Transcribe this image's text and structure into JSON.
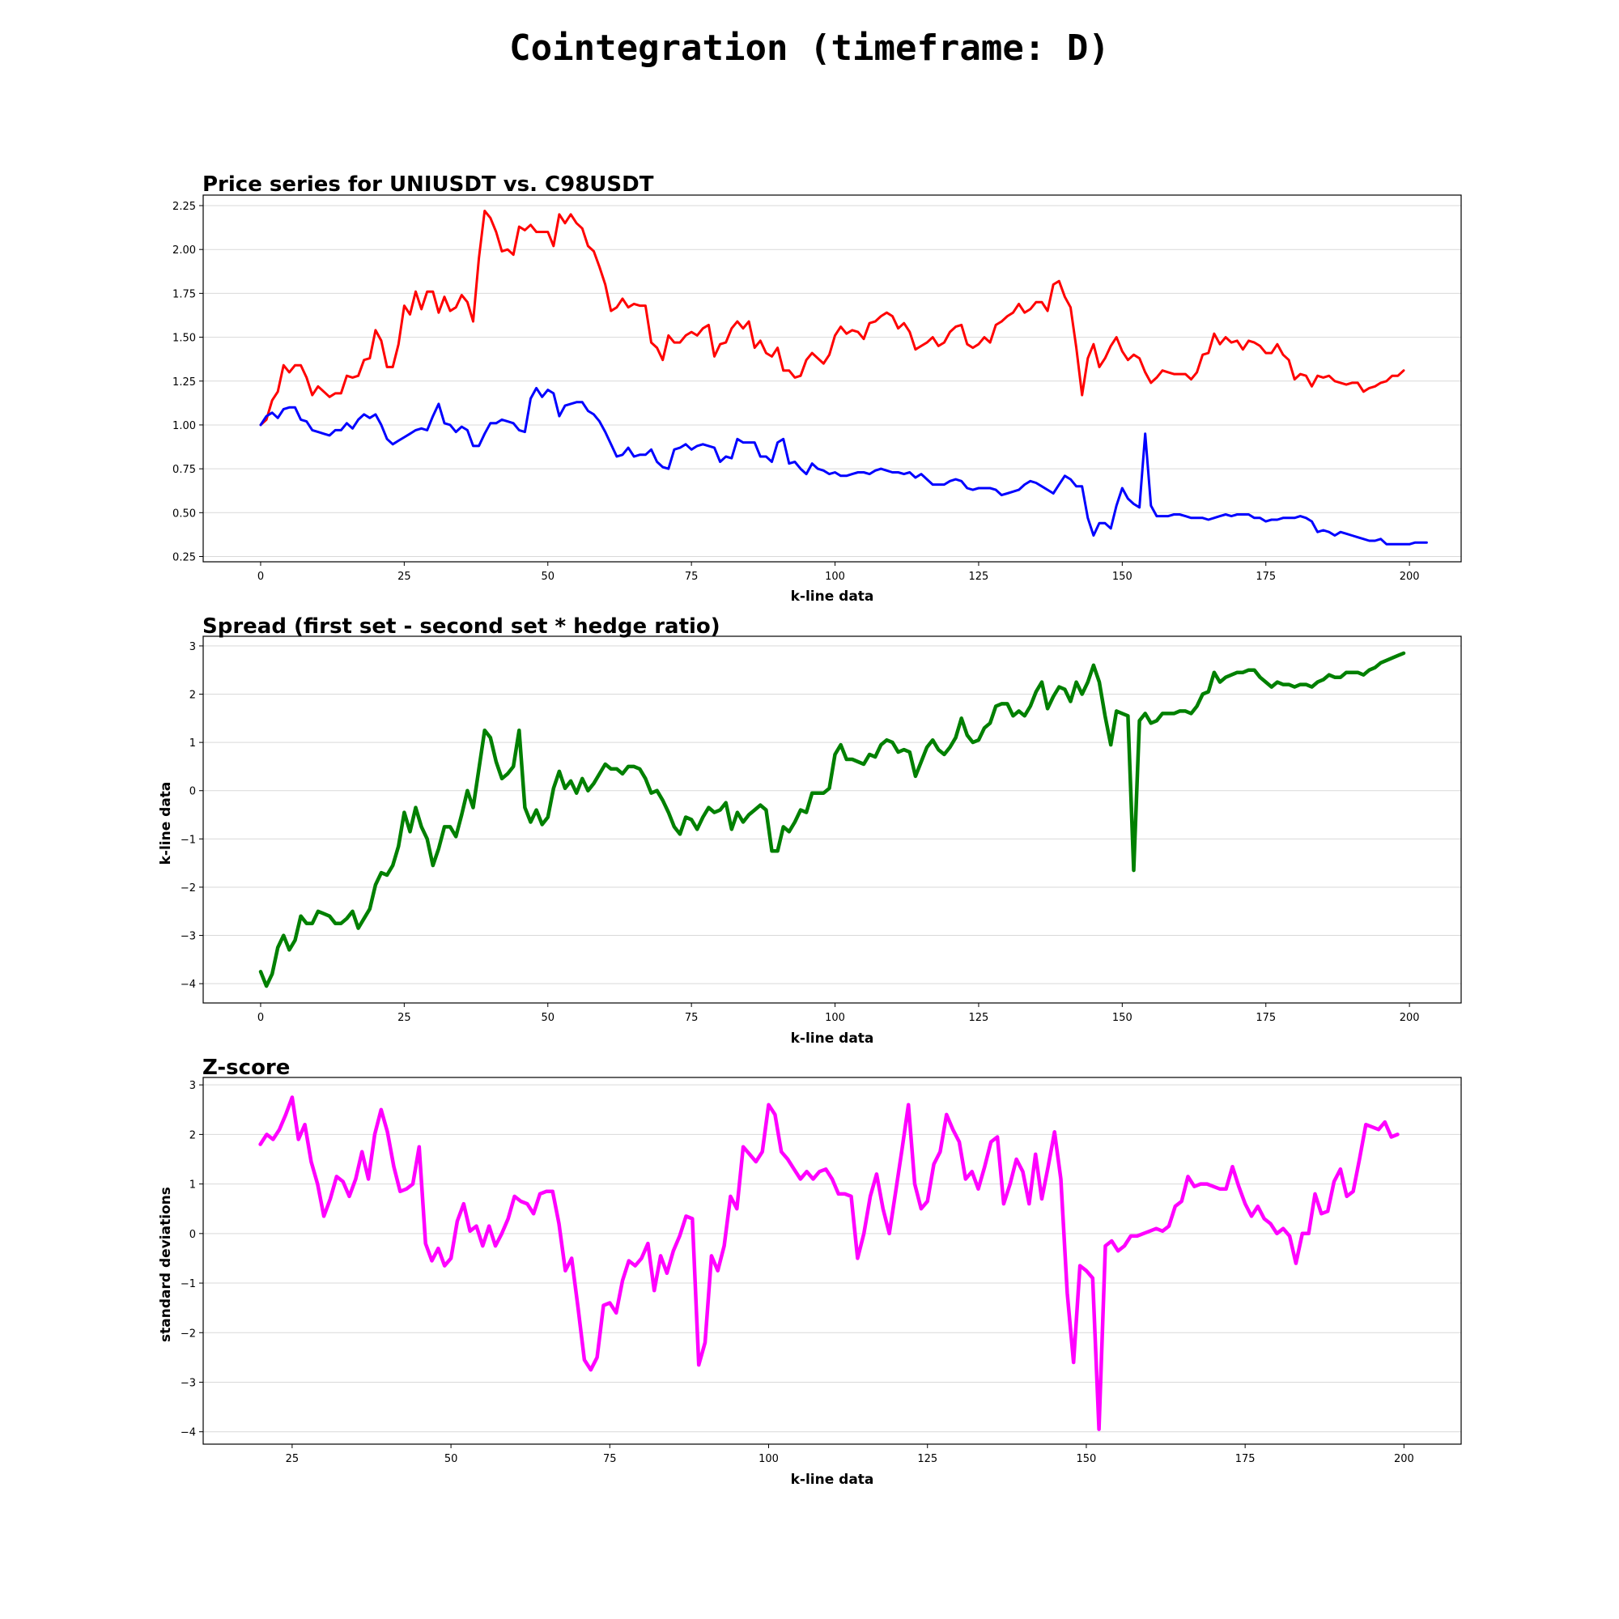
{
  "figure": {
    "suptitle": "Cointegration (timeframe: D)"
  },
  "chart_data": [
    {
      "type": "line",
      "title": "Price series for UNIUSDT vs. C98USDT",
      "xlabel": "k-line data",
      "ylabel": "",
      "xlim": [
        -10,
        209
      ],
      "ylim": [
        0.22,
        2.31
      ],
      "xticks": [
        0,
        25,
        50,
        75,
        100,
        125,
        150,
        175,
        200
      ],
      "yticks": [
        0.25,
        0.5,
        0.75,
        1.0,
        1.25,
        1.5,
        1.75,
        2.0,
        2.25
      ],
      "ytick_labels": [
        "0.25",
        "0.50",
        "0.75",
        "1.00",
        "1.25",
        "1.50",
        "1.75",
        "2.00",
        "2.25"
      ],
      "grid": "y",
      "x_start": 0,
      "series": [
        {
          "color": "#ff0000",
          "values": [
            1.0,
            1.03,
            1.14,
            1.19,
            1.34,
            1.3,
            1.34,
            1.34,
            1.27,
            1.17,
            1.22,
            1.19,
            1.16,
            1.18,
            1.18,
            1.28,
            1.27,
            1.28,
            1.37,
            1.38,
            1.54,
            1.48,
            1.33,
            1.33,
            1.46,
            1.68,
            1.63,
            1.76,
            1.66,
            1.76,
            1.76,
            1.64,
            1.73,
            1.65,
            1.67,
            1.74,
            1.7,
            1.59,
            1.95,
            2.22,
            2.18,
            2.1,
            1.99,
            2.0,
            1.97,
            2.13,
            2.11,
            2.14,
            2.1,
            2.1,
            2.1,
            2.02,
            2.2,
            2.15,
            2.2,
            2.15,
            2.12,
            2.02,
            1.99,
            1.9,
            1.8,
            1.65,
            1.67,
            1.72,
            1.67,
            1.69,
            1.68,
            1.68,
            1.47,
            1.44,
            1.37,
            1.51,
            1.47,
            1.47,
            1.51,
            1.53,
            1.51,
            1.55,
            1.57,
            1.39,
            1.46,
            1.47,
            1.55,
            1.59,
            1.55,
            1.59,
            1.44,
            1.48,
            1.41,
            1.39,
            1.44,
            1.31,
            1.31,
            1.27,
            1.28,
            1.37,
            1.41,
            1.38,
            1.35,
            1.4,
            1.51,
            1.56,
            1.52,
            1.54,
            1.53,
            1.49,
            1.58,
            1.59,
            1.62,
            1.64,
            1.62,
            1.55,
            1.58,
            1.53,
            1.43,
            1.45,
            1.47,
            1.5,
            1.45,
            1.47,
            1.53,
            1.56,
            1.57,
            1.46,
            1.44,
            1.46,
            1.5,
            1.47,
            1.57,
            1.59,
            1.62,
            1.64,
            1.69,
            1.64,
            1.66,
            1.7,
            1.7,
            1.65,
            1.8,
            1.82,
            1.73,
            1.67,
            1.44,
            1.17,
            1.38,
            1.46,
            1.33,
            1.38,
            1.45,
            1.5,
            1.42,
            1.37,
            1.4,
            1.38,
            1.3,
            1.24,
            1.27,
            1.31,
            1.3,
            1.29,
            1.29,
            1.29,
            1.26,
            1.3,
            1.4,
            1.41,
            1.52,
            1.46,
            1.5,
            1.47,
            1.48,
            1.43,
            1.48,
            1.47,
            1.45,
            1.41,
            1.41,
            1.46,
            1.4,
            1.37,
            1.26,
            1.29,
            1.28,
            1.22,
            1.28,
            1.27,
            1.28,
            1.25,
            1.24,
            1.23,
            1.24,
            1.24,
            1.19,
            1.21,
            1.22,
            1.24,
            1.25,
            1.28,
            1.28,
            1.31
          ]
        },
        {
          "color": "#0000ff",
          "values": [
            1.0,
            1.05,
            1.07,
            1.04,
            1.09,
            1.1,
            1.1,
            1.03,
            1.02,
            0.97,
            0.96,
            0.95,
            0.94,
            0.97,
            0.97,
            1.01,
            0.98,
            1.03,
            1.06,
            1.04,
            1.06,
            1.0,
            0.92,
            0.89,
            0.91,
            0.93,
            0.95,
            0.97,
            0.98,
            0.97,
            1.05,
            1.12,
            1.01,
            1.0,
            0.96,
            0.99,
            0.97,
            0.88,
            0.88,
            0.95,
            1.01,
            1.01,
            1.03,
            1.02,
            1.01,
            0.97,
            0.96,
            1.15,
            1.21,
            1.16,
            1.2,
            1.18,
            1.05,
            1.11,
            1.12,
            1.13,
            1.13,
            1.08,
            1.06,
            1.02,
            0.96,
            0.89,
            0.82,
            0.83,
            0.87,
            0.82,
            0.83,
            0.83,
            0.86,
            0.79,
            0.76,
            0.75,
            0.86,
            0.87,
            0.89,
            0.86,
            0.88,
            0.89,
            0.88,
            0.87,
            0.79,
            0.82,
            0.81,
            0.92,
            0.9,
            0.9,
            0.9,
            0.82,
            0.82,
            0.79,
            0.9,
            0.92,
            0.78,
            0.79,
            0.75,
            0.72,
            0.78,
            0.75,
            0.74,
            0.72,
            0.73,
            0.71,
            0.71,
            0.72,
            0.73,
            0.73,
            0.72,
            0.74,
            0.75,
            0.74,
            0.73,
            0.73,
            0.72,
            0.73,
            0.7,
            0.72,
            0.69,
            0.66,
            0.66,
            0.66,
            0.68,
            0.69,
            0.68,
            0.64,
            0.63,
            0.64,
            0.64,
            0.64,
            0.63,
            0.6,
            0.61,
            0.62,
            0.63,
            0.66,
            0.68,
            0.67,
            0.65,
            0.63,
            0.61,
            0.66,
            0.71,
            0.69,
            0.65,
            0.65,
            0.47,
            0.37,
            0.44,
            0.44,
            0.41,
            0.54,
            0.64,
            0.58,
            0.55,
            0.53,
            0.95,
            0.54,
            0.48,
            0.48,
            0.48,
            0.49,
            0.49,
            0.48,
            0.47,
            0.47,
            0.47,
            0.46,
            0.47,
            0.48,
            0.49,
            0.48,
            0.49,
            0.49,
            0.49,
            0.47,
            0.47,
            0.45,
            0.46,
            0.46,
            0.47,
            0.47,
            0.47,
            0.48,
            0.47,
            0.45,
            0.39,
            0.4,
            0.39,
            0.37,
            0.39,
            0.38,
            0.37,
            0.36,
            0.35,
            0.34,
            0.34,
            0.35,
            0.32,
            0.32,
            0.32,
            0.32,
            0.32,
            0.33,
            0.33,
            0.33
          ]
        }
      ]
    },
    {
      "type": "line",
      "title": "Spread (first set - second set * hedge ratio)",
      "xlabel": "k-line data",
      "ylabel": "k-line data",
      "xlim": [
        -10,
        209
      ],
      "ylim": [
        -4.4,
        3.2
      ],
      "xticks": [
        0,
        25,
        50,
        75,
        100,
        125,
        150,
        175,
        200
      ],
      "yticks": [
        -4,
        -3,
        -2,
        -1,
        0,
        1,
        2,
        3
      ],
      "ytick_labels": [
        "−4",
        "−3",
        "−2",
        "−1",
        "0",
        "1",
        "2",
        "3"
      ],
      "grid": "y",
      "x_start": 0,
      "series": [
        {
          "color": "#008000",
          "values": [
            -3.75,
            -4.05,
            -3.8,
            -3.25,
            -3.0,
            -3.3,
            -3.1,
            -2.6,
            -2.75,
            -2.75,
            -2.5,
            -2.55,
            -2.6,
            -2.75,
            -2.75,
            -2.65,
            -2.5,
            -2.85,
            -2.65,
            -2.45,
            -1.95,
            -1.7,
            -1.75,
            -1.55,
            -1.15,
            -0.45,
            -0.85,
            -0.35,
            -0.75,
            -1.0,
            -1.55,
            -1.2,
            -0.75,
            -0.75,
            -0.95,
            -0.5,
            0.0,
            -0.35,
            0.45,
            1.25,
            1.1,
            0.6,
            0.25,
            0.35,
            0.5,
            1.25,
            -0.35,
            -0.65,
            -0.4,
            -0.7,
            -0.55,
            0.05,
            0.4,
            0.05,
            0.2,
            -0.05,
            0.25,
            0.0,
            0.15,
            0.35,
            0.55,
            0.45,
            0.45,
            0.35,
            0.5,
            0.5,
            0.45,
            0.25,
            -0.05,
            0.0,
            -0.2,
            -0.45,
            -0.75,
            -0.9,
            -0.55,
            -0.6,
            -0.8,
            -0.55,
            -0.35,
            -0.45,
            -0.4,
            -0.25,
            -0.8,
            -0.45,
            -0.65,
            -0.5,
            -0.4,
            -0.3,
            -0.4,
            -1.25,
            -1.25,
            -0.75,
            -0.85,
            -0.65,
            -0.4,
            -0.45,
            -0.05,
            -0.05,
            -0.05,
            0.05,
            0.75,
            0.95,
            0.65,
            0.65,
            0.6,
            0.55,
            0.75,
            0.7,
            0.95,
            1.05,
            1.0,
            0.8,
            0.85,
            0.8,
            0.3,
            0.6,
            0.9,
            1.05,
            0.85,
            0.75,
            0.9,
            1.1,
            1.5,
            1.15,
            1.0,
            1.05,
            1.3,
            1.4,
            1.75,
            1.8,
            1.8,
            1.55,
            1.65,
            1.55,
            1.75,
            2.05,
            2.25,
            1.7,
            1.95,
            2.15,
            2.1,
            1.85,
            2.25,
            2.0,
            2.25,
            2.6,
            2.25,
            1.55,
            0.95,
            1.65,
            1.6,
            1.55,
            -1.65,
            1.45,
            1.6,
            1.4,
            1.45,
            1.6,
            1.6,
            1.6,
            1.65,
            1.65,
            1.6,
            1.75,
            2.0,
            2.05,
            2.45,
            2.25,
            2.35,
            2.4,
            2.45,
            2.45,
            2.5,
            2.5,
            2.35,
            2.25,
            2.15,
            2.25,
            2.2,
            2.2,
            2.15,
            2.2,
            2.2,
            2.15,
            2.25,
            2.3,
            2.4,
            2.35,
            2.35,
            2.45,
            2.45,
            2.45,
            2.4,
            2.5,
            2.55,
            2.65,
            2.7,
            2.75,
            2.8,
            2.85
          ]
        }
      ]
    },
    {
      "type": "line",
      "title": "Z-score",
      "xlabel": "k-line data",
      "ylabel": "standard deviations",
      "xlim": [
        11,
        209
      ],
      "ylim": [
        -4.25,
        3.15
      ],
      "xticks": [
        25,
        50,
        75,
        100,
        125,
        150,
        175,
        200
      ],
      "yticks": [
        -4,
        -3,
        -2,
        -1,
        0,
        1,
        2,
        3
      ],
      "ytick_labels": [
        "−4",
        "−3",
        "−2",
        "−1",
        "0",
        "1",
        "2",
        "3"
      ],
      "grid": "y",
      "x_start": 20,
      "series": [
        {
          "color": "#ff00ff",
          "values": [
            1.8,
            2.0,
            1.9,
            2.1,
            2.4,
            2.75,
            1.9,
            2.2,
            1.45,
            1.0,
            0.35,
            0.7,
            1.15,
            1.05,
            0.75,
            1.1,
            1.65,
            1.1,
            2.0,
            2.5,
            2.05,
            1.35,
            0.85,
            0.9,
            1.0,
            1.75,
            -0.2,
            -0.55,
            -0.3,
            -0.65,
            -0.5,
            0.25,
            0.6,
            0.05,
            0.15,
            -0.25,
            0.15,
            -0.25,
            0.0,
            0.3,
            0.75,
            0.65,
            0.6,
            0.4,
            0.8,
            0.85,
            0.85,
            0.2,
            -0.75,
            -0.5,
            -1.5,
            -2.55,
            -2.75,
            -2.5,
            -1.45,
            -1.4,
            -1.6,
            -0.95,
            -0.55,
            -0.65,
            -0.5,
            -0.2,
            -1.15,
            -0.45,
            -0.8,
            -0.35,
            -0.05,
            0.35,
            0.3,
            -2.65,
            -2.2,
            -0.45,
            -0.75,
            -0.25,
            0.75,
            0.5,
            1.75,
            1.6,
            1.45,
            1.65,
            2.6,
            2.4,
            1.65,
            1.5,
            1.3,
            1.1,
            1.25,
            1.1,
            1.25,
            1.3,
            1.1,
            0.8,
            0.8,
            0.75,
            -0.5,
            0.0,
            0.75,
            1.2,
            0.5,
            0.0,
            0.85,
            1.7,
            2.6,
            1.0,
            0.5,
            0.65,
            1.4,
            1.65,
            2.4,
            2.1,
            1.85,
            1.1,
            1.25,
            0.9,
            1.35,
            1.85,
            1.95,
            0.6,
            1.0,
            1.5,
            1.25,
            0.6,
            1.6,
            0.7,
            1.35,
            2.05,
            1.1,
            -1.2,
            -2.6,
            -0.65,
            -0.75,
            -0.9,
            -3.95,
            -0.25,
            -0.15,
            -0.35,
            -0.25,
            -0.05,
            -0.05,
            0.0,
            0.05,
            0.1,
            0.05,
            0.15,
            0.55,
            0.65,
            1.15,
            0.95,
            1.0,
            1.0,
            0.95,
            0.9,
            0.9,
            1.35,
            0.95,
            0.6,
            0.35,
            0.55,
            0.3,
            0.2,
            0.0,
            0.1,
            -0.05,
            -0.6,
            0.0,
            0.0,
            0.8,
            0.4,
            0.45,
            1.05,
            1.3,
            0.75,
            0.85,
            1.5,
            2.2,
            2.15,
            2.1,
            2.25,
            1.95,
            2.0
          ]
        }
      ]
    }
  ]
}
